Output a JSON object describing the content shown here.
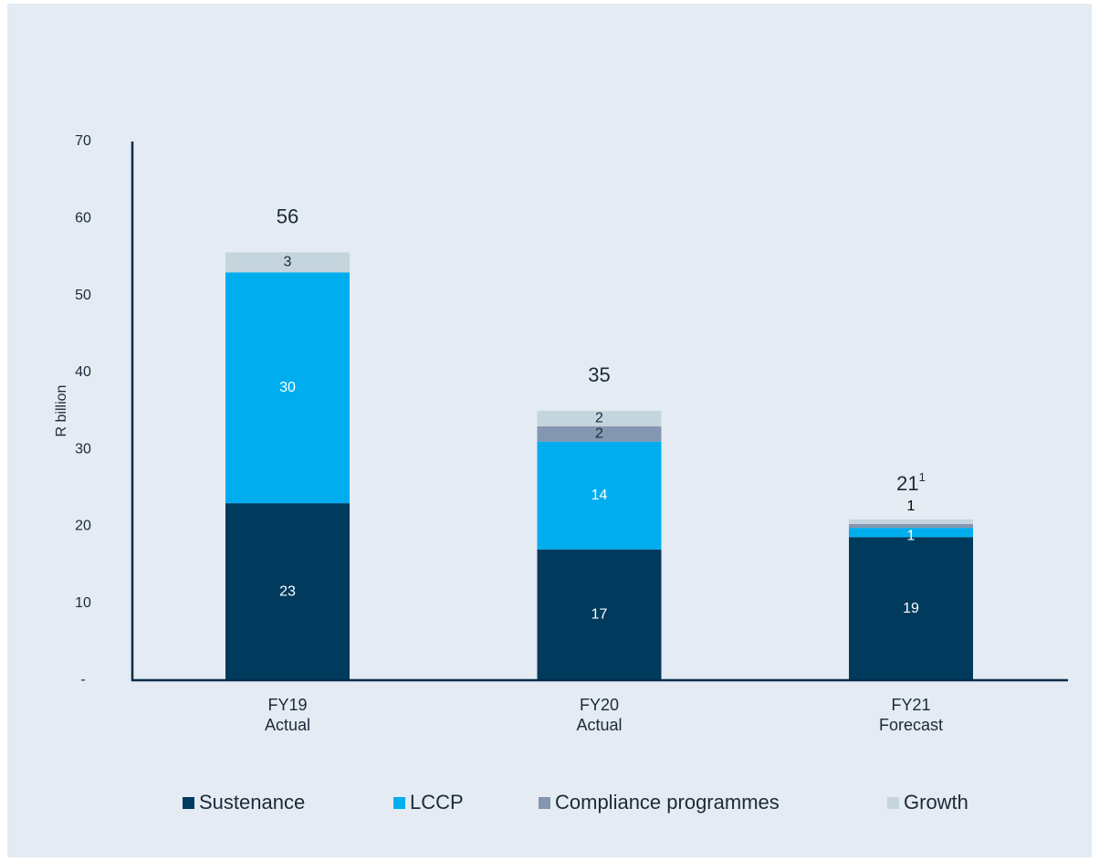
{
  "chart_data": {
    "type": "stacked_bar",
    "y_label": "R billion",
    "categories": [
      "FY19\nActual",
      "FY20\nActual",
      "FY21\nForecast"
    ],
    "series": [
      {
        "name": "Sustenance",
        "color": "#003a5d",
        "values": [
          23,
          17,
          18.6
        ],
        "value_labels": [
          "23",
          "17",
          "19"
        ]
      },
      {
        "name": "LCCP",
        "color": "#00aeef",
        "values": [
          30,
          14,
          1.2
        ],
        "value_labels": [
          "30",
          "14",
          "1"
        ]
      },
      {
        "name": "Compliance programmes",
        "color": "#8497b0",
        "values": [
          0,
          2,
          0.5
        ],
        "value_labels": [
          null,
          "2",
          null
        ]
      },
      {
        "name": "Growth",
        "color": "#c5d5de",
        "values": [
          2.6,
          2,
          0.6
        ],
        "value_labels": [
          "3",
          "2",
          "1"
        ]
      }
    ],
    "totals": [
      56,
      35,
      21
    ],
    "total_footnotes": [
      null,
      null,
      "1"
    ],
    "ylim": [
      0,
      70
    ],
    "yticks": [
      {
        "value": 0,
        "label": "-"
      },
      10,
      20,
      30,
      40,
      50,
      60,
      70
    ]
  }
}
